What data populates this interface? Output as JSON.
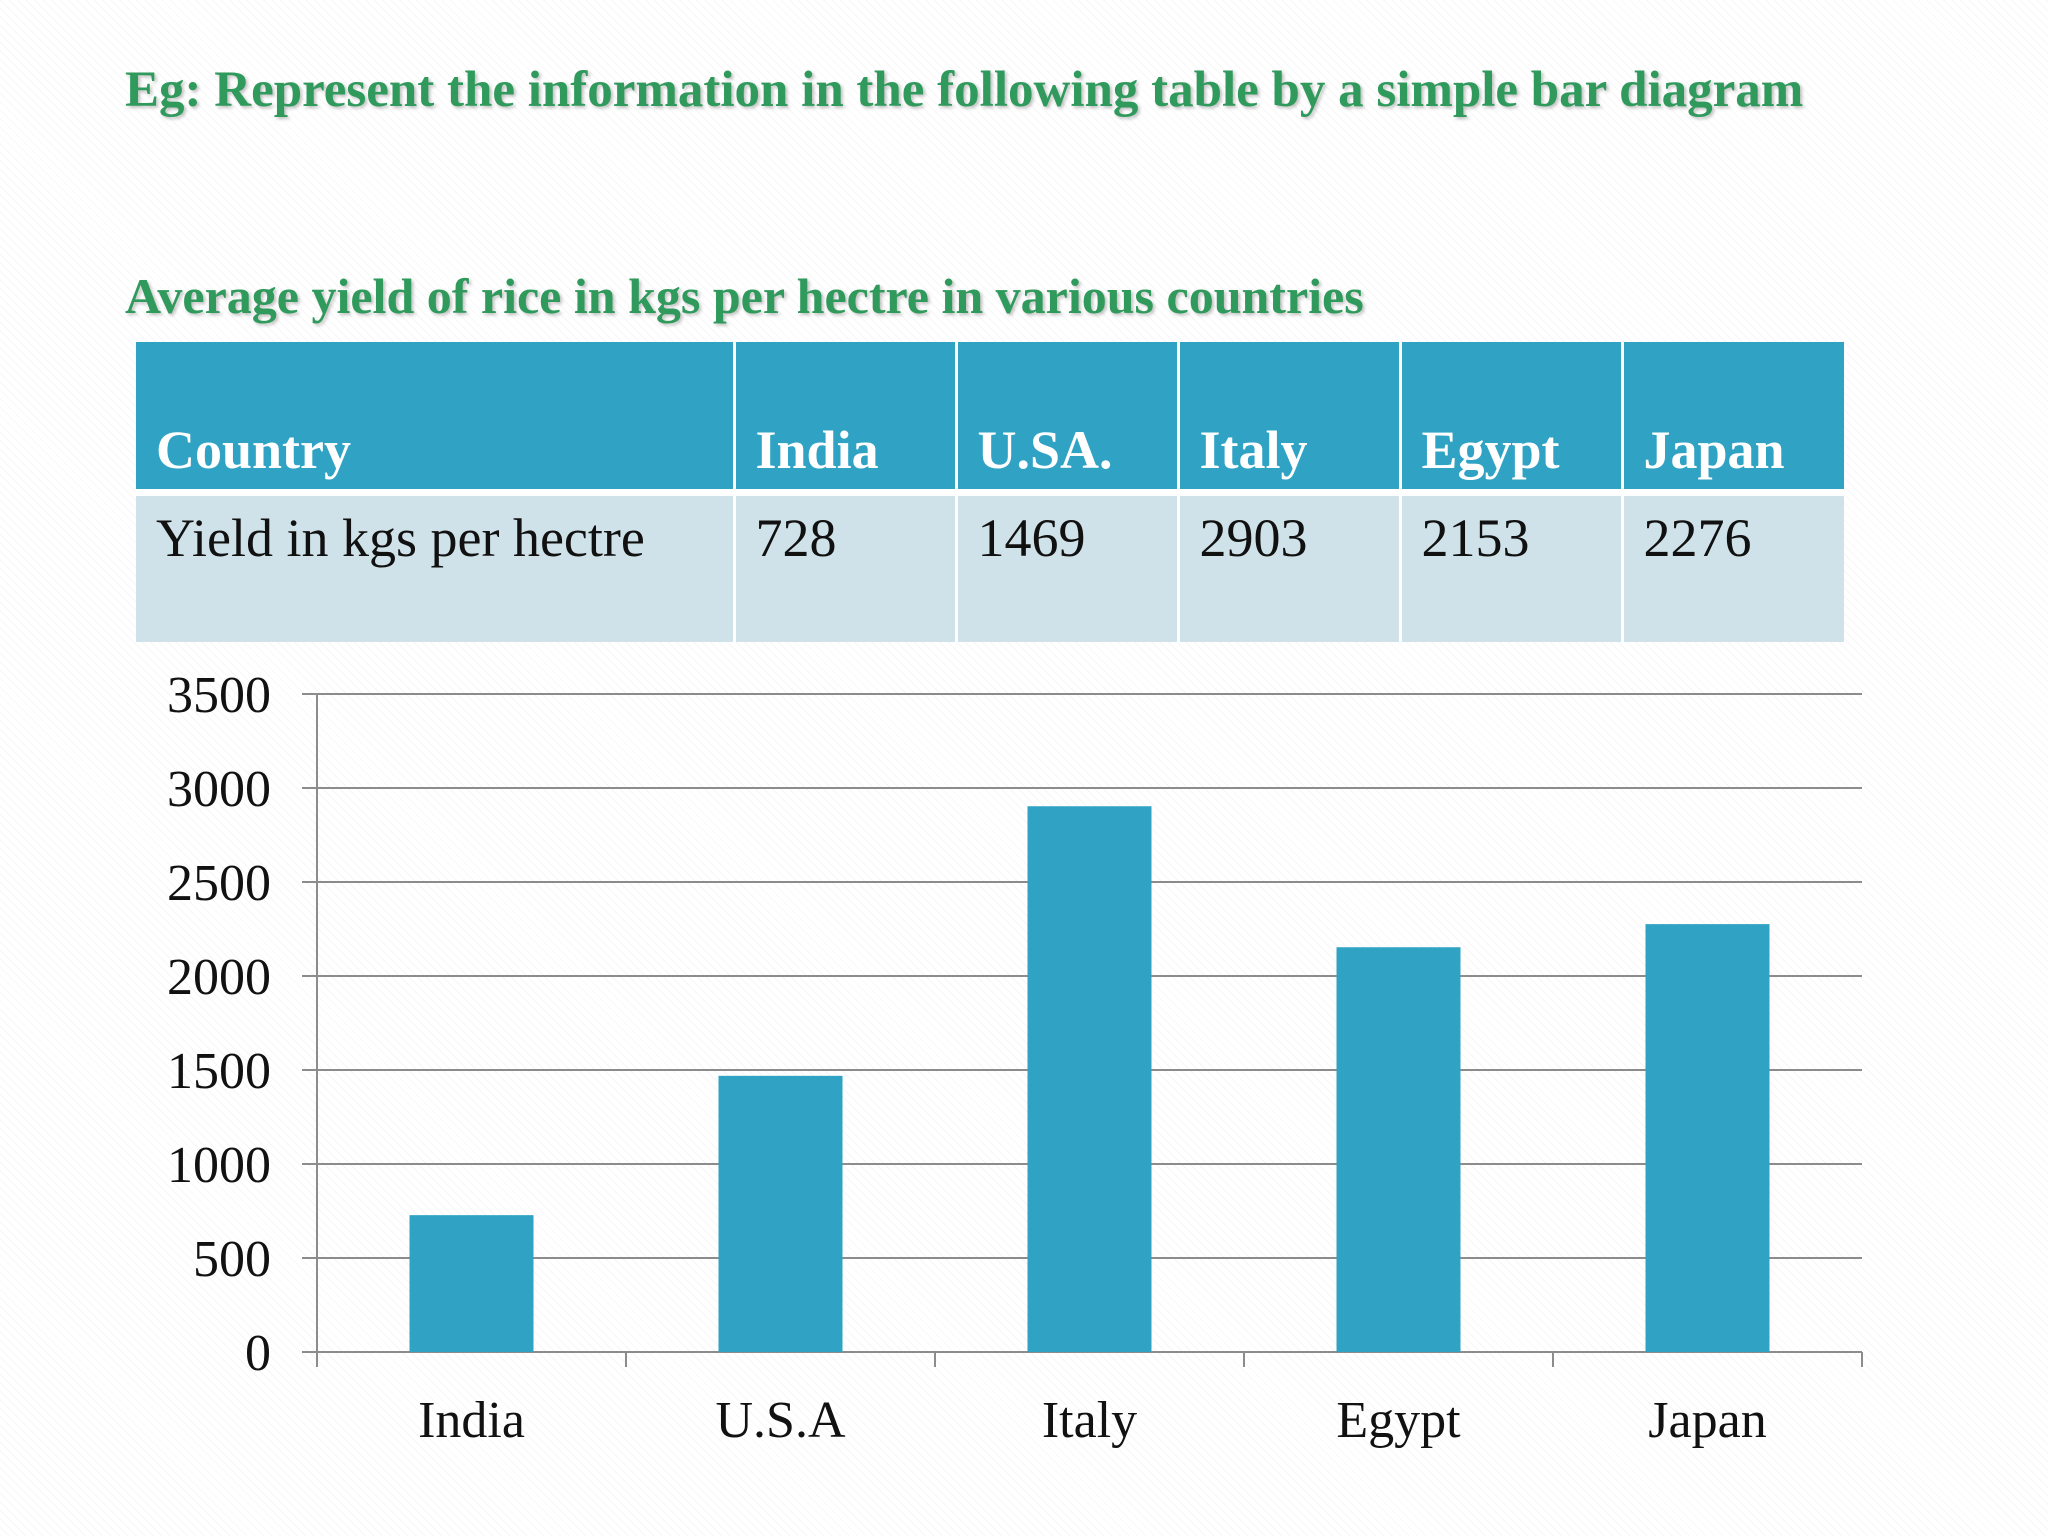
{
  "slide": {
    "title": "Eg: Represent the information in the following table by a simple bar diagram",
    "table_caption": "Average yield of rice in kgs per  hectre in various countries"
  },
  "table": {
    "header": [
      "Country",
      "India",
      "U.SA.",
      "Italy",
      "Egypt",
      "Japan"
    ],
    "row": [
      "Yield in kgs per hectre",
      "728",
      "1469",
      "2903",
      "2153",
      "2276"
    ]
  },
  "colors": {
    "bar": "#30a3c4",
    "header_bg": "#30a3c4",
    "row_bg": "#d0e2e9",
    "title": "#2f9a5c",
    "grid": "#8c8c8c"
  },
  "chart_data": {
    "type": "bar",
    "title": "",
    "xlabel": "",
    "ylabel": "",
    "categories": [
      "India",
      "U.S.A",
      "Italy",
      "Egypt",
      "Japan"
    ],
    "values": [
      728,
      1469,
      2903,
      2153,
      2276
    ],
    "ylim": [
      0,
      3500
    ],
    "yticks": [
      0,
      500,
      1000,
      1500,
      2000,
      2500,
      3000,
      3500
    ],
    "grid": true,
    "legend": "none"
  }
}
